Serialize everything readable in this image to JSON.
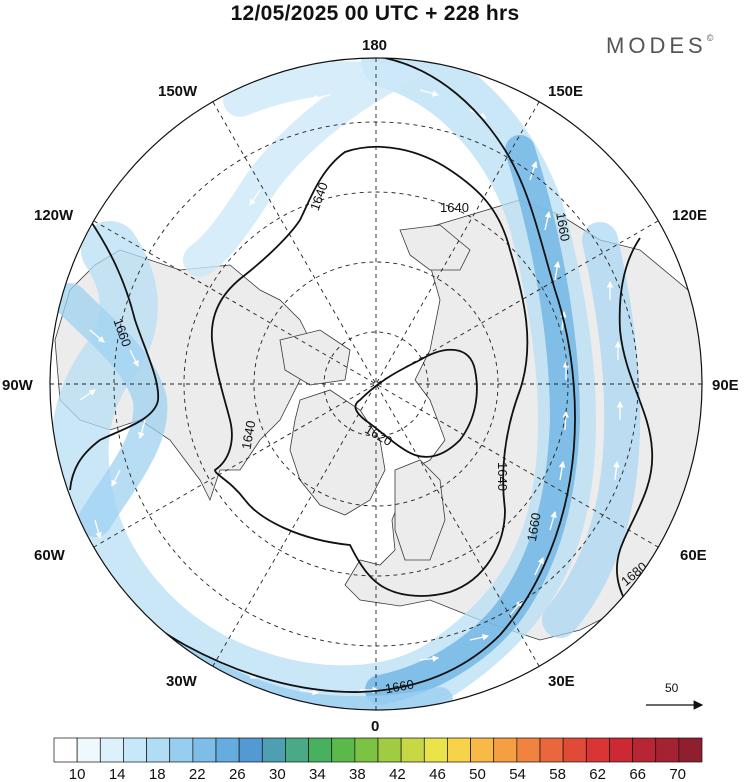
{
  "header": {
    "title": "12/05/2025  00 UTC  + 228 hrs",
    "brand": "MODES",
    "brand_mark": "©"
  },
  "map": {
    "projection": "north-polar-stereographic",
    "ocean_color": "#ffffff",
    "land_color": "#ececec",
    "coastline_color": "#3a3a3a",
    "grid_style": "dashed",
    "longitude_labels": [
      {
        "id": "lon-180",
        "text": "180"
      },
      {
        "id": "lon-150w",
        "text": "150W"
      },
      {
        "id": "lon-150e",
        "text": "150E"
      },
      {
        "id": "lon-120w",
        "text": "120W"
      },
      {
        "id": "lon-120e",
        "text": "120E"
      },
      {
        "id": "lon-90w",
        "text": "90W"
      },
      {
        "id": "lon-90e",
        "text": "90E"
      },
      {
        "id": "lon-60w",
        "text": "60W"
      },
      {
        "id": "lon-60e",
        "text": "60E"
      },
      {
        "id": "lon-30w",
        "text": "30W"
      },
      {
        "id": "lon-30e",
        "text": "30E"
      },
      {
        "id": "lon-0",
        "text": "0"
      }
    ],
    "contours": [
      {
        "value": 1620,
        "label": "1620"
      },
      {
        "value": 1640,
        "label": "1640"
      },
      {
        "value": 1660,
        "label": "1660"
      },
      {
        "value": 1680,
        "label": "1680"
      }
    ],
    "contour_labels_shown": [
      "1640",
      "1640",
      "1640",
      "1640",
      "1660",
      "1660",
      "1660",
      "1660",
      "1620",
      "1680"
    ],
    "reference_vector": {
      "label": "50"
    }
  },
  "colorbar": {
    "tick_labels": [
      "10",
      "14",
      "18",
      "22",
      "26",
      "30",
      "34",
      "38",
      "42",
      "46",
      "50",
      "54",
      "58",
      "62",
      "66",
      "70"
    ],
    "colors": [
      "#ffffff",
      "#eef8fd",
      "#dcf1fb",
      "#c7e8f8",
      "#b0dcf4",
      "#97cdee",
      "#7dbde7",
      "#66addf",
      "#5599d4",
      "#4d9fb1",
      "#4aaa87",
      "#48b15f",
      "#5bb84a",
      "#7cc243",
      "#a0cc43",
      "#c7d844",
      "#ece24a",
      "#f8d248",
      "#f8b946",
      "#f59f42",
      "#f08340",
      "#ea663c",
      "#e24a38",
      "#d93536",
      "#cb2a34",
      "#b92633",
      "#a42231",
      "#8f1f2f"
    ]
  }
}
